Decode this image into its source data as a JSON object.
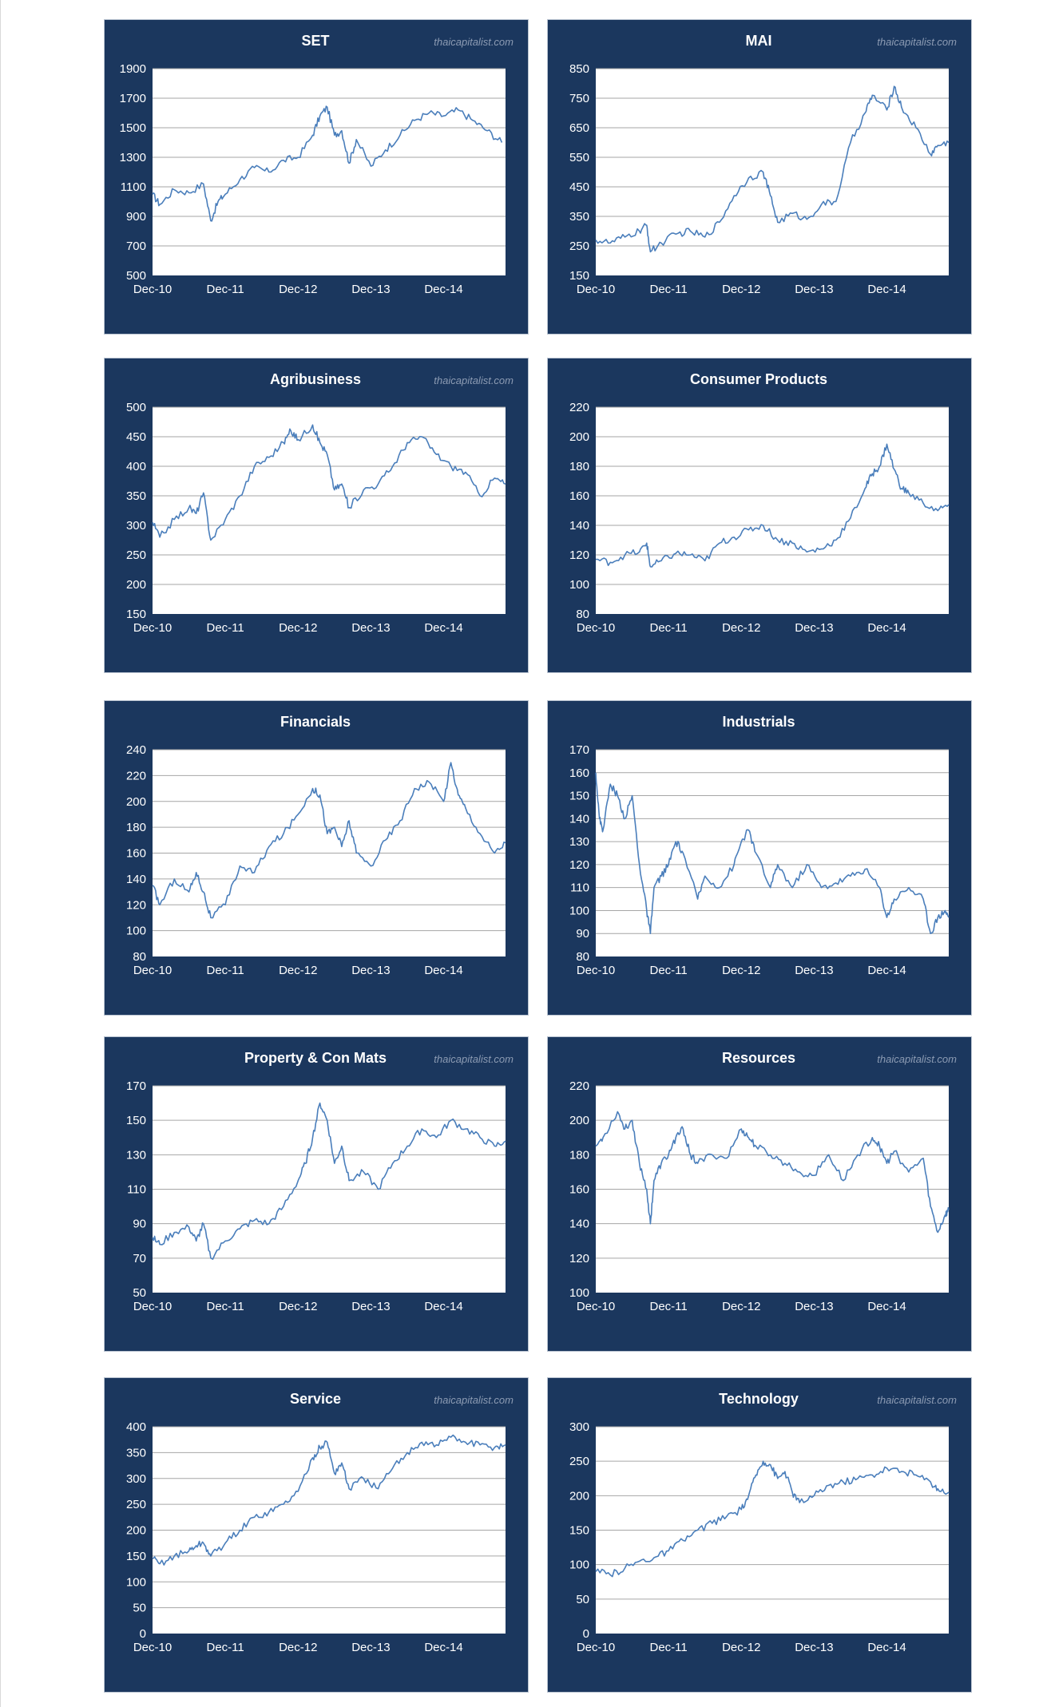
{
  "watermark": "thaicapitalist.com",
  "colors": {
    "panel_bg": "#1b375e",
    "plot_bg": "#ffffff",
    "line": "#4a7ebb",
    "grid": "#a6a6a6",
    "text": "#ffffff"
  },
  "chart_data": [
    {
      "type": "line",
      "title": "SET",
      "show_watermark": true,
      "x_ticks": [
        "Dec-10",
        "Dec-11",
        "Dec-12",
        "Dec-13",
        "Dec-14"
      ],
      "ylim": [
        500,
        1900
      ],
      "y_ticks": [
        500,
        700,
        900,
        1100,
        1300,
        1500,
        1700,
        1900
      ],
      "grid": true,
      "series": [
        {
          "x": [
            0,
            0.1,
            0.3,
            0.5,
            0.7,
            0.8,
            0.9,
            1.0,
            1.2,
            1.4,
            1.6,
            1.8,
            2.0,
            2.2,
            2.3,
            2.4,
            2.5,
            2.6,
            2.7,
            2.8,
            3.0,
            3.2,
            3.4,
            3.6,
            3.8,
            4.0,
            4.2,
            4.4,
            4.6,
            4.8
          ],
          "y": [
            1050,
            980,
            1080,
            1060,
            1120,
            870,
            1000,
            1050,
            1150,
            1230,
            1200,
            1280,
            1300,
            1450,
            1580,
            1640,
            1450,
            1480,
            1260,
            1420,
            1240,
            1350,
            1450,
            1550,
            1600,
            1580,
            1620,
            1550,
            1480,
            1400
          ]
        }
      ]
    },
    {
      "type": "line",
      "title": "MAI",
      "show_watermark": true,
      "x_ticks": [
        "Dec-10",
        "Dec-11",
        "Dec-12",
        "Dec-13",
        "Dec-14"
      ],
      "ylim": [
        150,
        850
      ],
      "y_ticks": [
        150,
        250,
        350,
        450,
        550,
        650,
        750,
        850
      ],
      "grid": true,
      "series": [
        {
          "x": [
            0,
            0.2,
            0.4,
            0.6,
            0.7,
            0.75,
            0.9,
            1.1,
            1.3,
            1.5,
            1.7,
            1.9,
            2.1,
            2.3,
            2.4,
            2.5,
            2.7,
            2.9,
            3.1,
            3.3,
            3.5,
            3.7,
            3.8,
            4.0,
            4.1,
            4.2,
            4.4,
            4.6,
            4.7,
            4.85
          ],
          "y": [
            270,
            260,
            280,
            300,
            320,
            230,
            260,
            290,
            300,
            280,
            330,
            420,
            480,
            500,
            420,
            330,
            360,
            340,
            390,
            400,
            600,
            700,
            760,
            710,
            790,
            720,
            650,
            560,
            590,
            600
          ]
        }
      ]
    },
    {
      "type": "line",
      "title": "Agribusiness",
      "show_watermark": true,
      "x_ticks": [
        "Dec-10",
        "Dec-11",
        "Dec-12",
        "Dec-13",
        "Dec-14"
      ],
      "ylim": [
        150,
        500
      ],
      "y_ticks": [
        150,
        200,
        250,
        300,
        350,
        400,
        450,
        500
      ],
      "grid": true,
      "series": [
        {
          "x": [
            0,
            0.1,
            0.3,
            0.5,
            0.6,
            0.7,
            0.8,
            1.0,
            1.2,
            1.4,
            1.6,
            1.8,
            1.9,
            2.0,
            2.2,
            2.3,
            2.4,
            2.5,
            2.6,
            2.7,
            2.9,
            3.1,
            3.3,
            3.5,
            3.7,
            3.9,
            4.1,
            4.3,
            4.5,
            4.7,
            4.85
          ],
          "y": [
            305,
            280,
            310,
            330,
            320,
            355,
            275,
            310,
            350,
            400,
            415,
            440,
            460,
            445,
            470,
            440,
            420,
            360,
            370,
            330,
            360,
            370,
            400,
            440,
            450,
            420,
            400,
            390,
            350,
            380,
            370
          ]
        }
      ]
    },
    {
      "type": "line",
      "title": "Consumer Products",
      "show_watermark": false,
      "x_ticks": [
        "Dec-10",
        "Dec-11",
        "Dec-12",
        "Dec-13",
        "Dec-14"
      ],
      "ylim": [
        80,
        220
      ],
      "y_ticks": [
        80,
        100,
        120,
        140,
        160,
        180,
        200,
        220
      ],
      "grid": true,
      "series": [
        {
          "x": [
            0,
            0.2,
            0.4,
            0.6,
            0.7,
            0.75,
            0.9,
            1.1,
            1.3,
            1.5,
            1.7,
            1.9,
            2.1,
            2.3,
            2.5,
            2.7,
            2.9,
            3.1,
            3.3,
            3.5,
            3.7,
            3.8,
            3.9,
            4.0,
            4.1,
            4.2,
            4.3,
            4.5,
            4.7,
            4.85
          ],
          "y": [
            117,
            115,
            120,
            122,
            128,
            112,
            116,
            121,
            120,
            116,
            128,
            132,
            137,
            140,
            130,
            128,
            122,
            124,
            130,
            145,
            165,
            175,
            180,
            195,
            178,
            165,
            162,
            155,
            150,
            154
          ]
        }
      ]
    },
    {
      "type": "line",
      "title": "Financials",
      "show_watermark": false,
      "x_ticks": [
        "Dec-10",
        "Dec-11",
        "Dec-12",
        "Dec-13",
        "Dec-14"
      ],
      "ylim": [
        80,
        240
      ],
      "y_ticks": [
        80,
        100,
        120,
        140,
        160,
        180,
        200,
        220,
        240
      ],
      "grid": true,
      "series": [
        {
          "x": [
            0,
            0.1,
            0.3,
            0.5,
            0.6,
            0.7,
            0.8,
            1.0,
            1.2,
            1.4,
            1.6,
            1.8,
            2.0,
            2.2,
            2.3,
            2.4,
            2.5,
            2.6,
            2.7,
            2.8,
            3.0,
            3.2,
            3.4,
            3.6,
            3.8,
            4.0,
            4.1,
            4.2,
            4.3,
            4.5,
            4.7,
            4.85
          ],
          "y": [
            135,
            120,
            140,
            130,
            145,
            130,
            110,
            120,
            150,
            145,
            165,
            175,
            190,
            210,
            205,
            175,
            180,
            165,
            185,
            160,
            150,
            170,
            185,
            210,
            215,
            200,
            230,
            205,
            195,
            175,
            160,
            168
          ]
        }
      ]
    },
    {
      "type": "line",
      "title": "Industrials",
      "show_watermark": false,
      "x_ticks": [
        "Dec-10",
        "Dec-11",
        "Dec-12",
        "Dec-13",
        "Dec-14"
      ],
      "ylim": [
        80,
        170
      ],
      "y_ticks": [
        80,
        90,
        100,
        110,
        120,
        130,
        140,
        150,
        160,
        170
      ],
      "grid": true,
      "series": [
        {
          "x": [
            0,
            0.05,
            0.1,
            0.2,
            0.3,
            0.4,
            0.5,
            0.6,
            0.7,
            0.75,
            0.8,
            0.9,
            1.0,
            1.1,
            1.2,
            1.4,
            1.5,
            1.7,
            1.9,
            2.0,
            2.1,
            2.2,
            2.4,
            2.5,
            2.7,
            2.9,
            3.1,
            3.3,
            3.5,
            3.7,
            3.9,
            4.0,
            4.1,
            4.3,
            4.5,
            4.6,
            4.7,
            4.8,
            4.85
          ],
          "y": [
            160,
            140,
            135,
            155,
            150,
            140,
            150,
            120,
            100,
            90,
            110,
            115,
            120,
            130,
            125,
            105,
            115,
            110,
            120,
            130,
            135,
            125,
            110,
            120,
            110,
            120,
            110,
            112,
            115,
            118,
            110,
            97,
            105,
            110,
            105,
            90,
            97,
            100,
            97
          ]
        }
      ]
    },
    {
      "type": "line",
      "title": "Property & Con Mats",
      "show_watermark": true,
      "x_ticks": [
        "Dec-10",
        "Dec-11",
        "Dec-12",
        "Dec-13",
        "Dec-14"
      ],
      "ylim": [
        50,
        170
      ],
      "y_ticks": [
        50,
        70,
        90,
        110,
        130,
        150,
        170
      ],
      "grid": true,
      "series": [
        {
          "x": [
            0,
            0.1,
            0.3,
            0.5,
            0.6,
            0.7,
            0.8,
            1.0,
            1.2,
            1.4,
            1.6,
            1.8,
            2.0,
            2.1,
            2.2,
            2.3,
            2.4,
            2.5,
            2.6,
            2.7,
            2.9,
            3.1,
            3.3,
            3.5,
            3.7,
            3.9,
            4.1,
            4.3,
            4.5,
            4.7,
            4.85
          ],
          "y": [
            82,
            78,
            85,
            88,
            80,
            90,
            70,
            80,
            87,
            92,
            90,
            100,
            115,
            125,
            140,
            160,
            150,
            125,
            135,
            115,
            120,
            110,
            125,
            135,
            145,
            140,
            150,
            145,
            140,
            135,
            138
          ]
        }
      ]
    },
    {
      "type": "line",
      "title": "Resources",
      "show_watermark": true,
      "x_ticks": [
        "Dec-10",
        "Dec-11",
        "Dec-12",
        "Dec-13",
        "Dec-14"
      ],
      "ylim": [
        100,
        220
      ],
      "y_ticks": [
        100,
        120,
        140,
        160,
        180,
        200,
        220
      ],
      "grid": true,
      "series": [
        {
          "x": [
            0,
            0.1,
            0.3,
            0.4,
            0.5,
            0.6,
            0.7,
            0.75,
            0.8,
            0.9,
            1.0,
            1.1,
            1.2,
            1.3,
            1.4,
            1.6,
            1.8,
            2.0,
            2.1,
            2.2,
            2.4,
            2.6,
            2.8,
            3.0,
            3.2,
            3.4,
            3.6,
            3.8,
            3.9,
            4.0,
            4.1,
            4.3,
            4.5,
            4.6,
            4.7,
            4.8,
            4.85
          ],
          "y": [
            185,
            190,
            205,
            195,
            200,
            175,
            160,
            140,
            165,
            175,
            180,
            190,
            195,
            180,
            175,
            180,
            178,
            195,
            190,
            185,
            180,
            175,
            170,
            168,
            180,
            165,
            180,
            190,
            185,
            175,
            182,
            170,
            178,
            150,
            135,
            145,
            148
          ]
        }
      ]
    },
    {
      "type": "line",
      "title": "Service",
      "show_watermark": true,
      "x_ticks": [
        "Dec-10",
        "Dec-11",
        "Dec-12",
        "Dec-13",
        "Dec-14"
      ],
      "ylim": [
        0,
        400
      ],
      "y_ticks": [
        0,
        50,
        100,
        150,
        200,
        250,
        300,
        350,
        400
      ],
      "grid": true,
      "series": [
        {
          "x": [
            0,
            0.1,
            0.3,
            0.5,
            0.6,
            0.7,
            0.8,
            1.0,
            1.2,
            1.4,
            1.6,
            1.8,
            2.0,
            2.2,
            2.3,
            2.4,
            2.5,
            2.6,
            2.7,
            2.9,
            3.1,
            3.3,
            3.5,
            3.7,
            3.9,
            4.1,
            4.3,
            4.5,
            4.7,
            4.85
          ],
          "y": [
            145,
            135,
            150,
            160,
            170,
            175,
            150,
            175,
            200,
            225,
            235,
            250,
            275,
            340,
            360,
            370,
            310,
            330,
            280,
            300,
            280,
            320,
            350,
            370,
            365,
            380,
            370,
            365,
            360,
            365
          ]
        }
      ]
    },
    {
      "type": "line",
      "title": "Technology",
      "show_watermark": true,
      "x_ticks": [
        "Dec-10",
        "Dec-11",
        "Dec-12",
        "Dec-13",
        "Dec-14"
      ],
      "ylim": [
        0,
        300
      ],
      "y_ticks": [
        0,
        50,
        100,
        150,
        200,
        250,
        300
      ],
      "grid": true,
      "series": [
        {
          "x": [
            0,
            0.2,
            0.4,
            0.6,
            0.8,
            1.0,
            1.2,
            1.4,
            1.6,
            1.8,
            2.0,
            2.1,
            2.2,
            2.3,
            2.4,
            2.5,
            2.6,
            2.7,
            2.8,
            3.0,
            3.2,
            3.4,
            3.6,
            3.8,
            4.0,
            4.2,
            4.4,
            4.6,
            4.7,
            4.85
          ],
          "y": [
            90,
            85,
            95,
            105,
            110,
            120,
            135,
            150,
            160,
            170,
            180,
            200,
            230,
            250,
            245,
            225,
            235,
            205,
            190,
            200,
            215,
            220,
            225,
            230,
            240,
            235,
            230,
            220,
            210,
            205
          ]
        }
      ]
    }
  ]
}
